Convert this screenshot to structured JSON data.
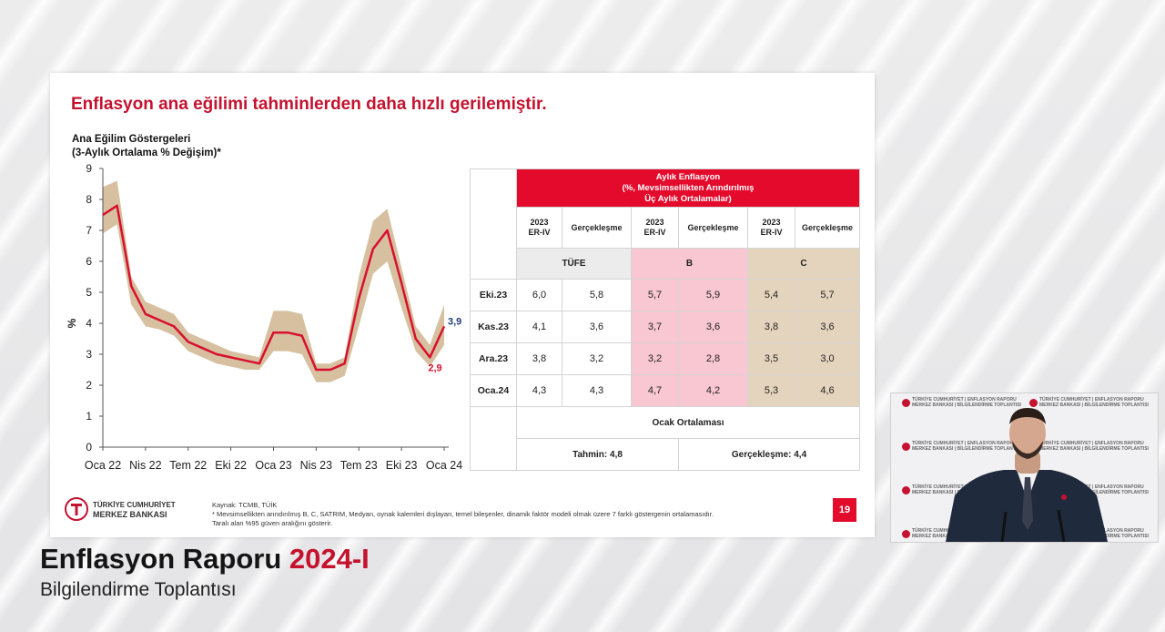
{
  "slide": {
    "title": "Enflasyon ana eğilimi tahminlerden daha hızlı gerilemiştir.",
    "page_number": "19"
  },
  "chart_data": {
    "type": "line",
    "title_line1": "Ana Eğilim Göstergeleri",
    "title_line2": "(3-Aylık Ortalama % Değişim)*",
    "ylabel": "%",
    "ylim": [
      0,
      9
    ],
    "yticks": [
      "0",
      "1",
      "2",
      "3",
      "4",
      "5",
      "6",
      "7",
      "8",
      "9"
    ],
    "xticks": [
      "Oca 22",
      "Nis 22",
      "Tem 22",
      "Eki 22",
      "Oca 23",
      "Nis 23",
      "Tem 23",
      "Eki 23",
      "Oca 24"
    ],
    "x_months": [
      "2022-01",
      "2022-02",
      "2022-03",
      "2022-04",
      "2022-05",
      "2022-06",
      "2022-07",
      "2022-08",
      "2022-09",
      "2022-10",
      "2022-11",
      "2022-12",
      "2023-01",
      "2023-02",
      "2023-03",
      "2023-04",
      "2023-05",
      "2023-06",
      "2023-07",
      "2023-08",
      "2023-09",
      "2023-10",
      "2023-11",
      "2023-12",
      "2024-01"
    ],
    "series": [
      {
        "values": [
          7.5,
          7.8,
          5.2,
          4.3,
          4.1,
          3.9,
          3.4,
          3.2,
          3.0,
          2.9,
          2.8,
          2.7,
          3.7,
          3.7,
          3.6,
          2.5,
          2.5,
          2.7,
          4.8,
          6.4,
          7.0,
          5.3,
          3.5,
          2.9,
          3.9
        ]
      }
    ],
    "band_upper": [
      8.4,
      8.6,
      5.5,
      4.7,
      4.5,
      4.3,
      3.7,
      3.5,
      3.3,
      3.1,
      3.0,
      2.9,
      4.4,
      4.4,
      4.3,
      2.7,
      2.7,
      2.9,
      5.5,
      7.3,
      7.7,
      5.8,
      3.9,
      3.3,
      4.6
    ],
    "band_lower": [
      6.9,
      7.2,
      4.6,
      3.9,
      3.8,
      3.6,
      3.1,
      2.9,
      2.7,
      2.6,
      2.5,
      2.5,
      3.1,
      3.1,
      3.0,
      2.1,
      2.1,
      2.3,
      3.9,
      5.6,
      6.0,
      4.5,
      3.1,
      2.6,
      3.3
    ],
    "end_labels": {
      "last_value": "3,9",
      "prev_value": "2,9"
    },
    "line_color": "#d8102e",
    "band_color": "#cfb58f"
  },
  "table": {
    "header": "Aylık Enflasyon\n(%, Mevsimsellikten Arındırılmış\nÜç Aylık Ortalamalar)",
    "col_forecast": "2023\nER-IV",
    "col_actual": "Gerçekleşme",
    "groups": [
      "TÜFE",
      "B",
      "C"
    ],
    "rows": [
      {
        "label": "Eki.23",
        "values": [
          "6,0",
          "5,8",
          "5,7",
          "5,9",
          "5,4",
          "5,7"
        ]
      },
      {
        "label": "Kas.23",
        "values": [
          "4,1",
          "3,6",
          "3,7",
          "3,6",
          "3,8",
          "3,6"
        ]
      },
      {
        "label": "Ara.23",
        "values": [
          "3,8",
          "3,2",
          "3,2",
          "2,8",
          "3,5",
          "3,0"
        ]
      },
      {
        "label": "Oca.24",
        "values": [
          "4,3",
          "4,3",
          "4,7",
          "4,2",
          "5,3",
          "4,6"
        ]
      }
    ],
    "jan_avg_label": "Ocak Ortalaması",
    "forecast_text": "Tahmin: 4,8",
    "actual_text": "Gerçekleşme: 4,4"
  },
  "footer": {
    "logo_line1": "TÜRKİYE CUMHURİYET",
    "logo_line2": "MERKEZ BANKASI",
    "source": "Kaynak: TCMB, TÜİK",
    "note1": "* Mevsimsellikten arındırılmış B, C, SATRIM, Medyan, oynak kalemleri dışlayan, temel bileşenler, dinamik faktör modeli olmak üzere 7 farklı göstergenin ortalamasıdır.",
    "note2": "Taralı alan %95 güven aralığını gösterir."
  },
  "report": {
    "title": "Enflasyon Raporu",
    "year": "2024-I",
    "subtitle": "Bilgilendirme Toplantısı"
  },
  "video": {
    "backdrop_line1": "TÜRKİYE CUMHURİYET",
    "backdrop_line2": "MERKEZ BANKASI",
    "backdrop_line3": "ENFLASYON RAPORU",
    "backdrop_line4": "BİLGİLENDİRME TOPLANTISI"
  }
}
